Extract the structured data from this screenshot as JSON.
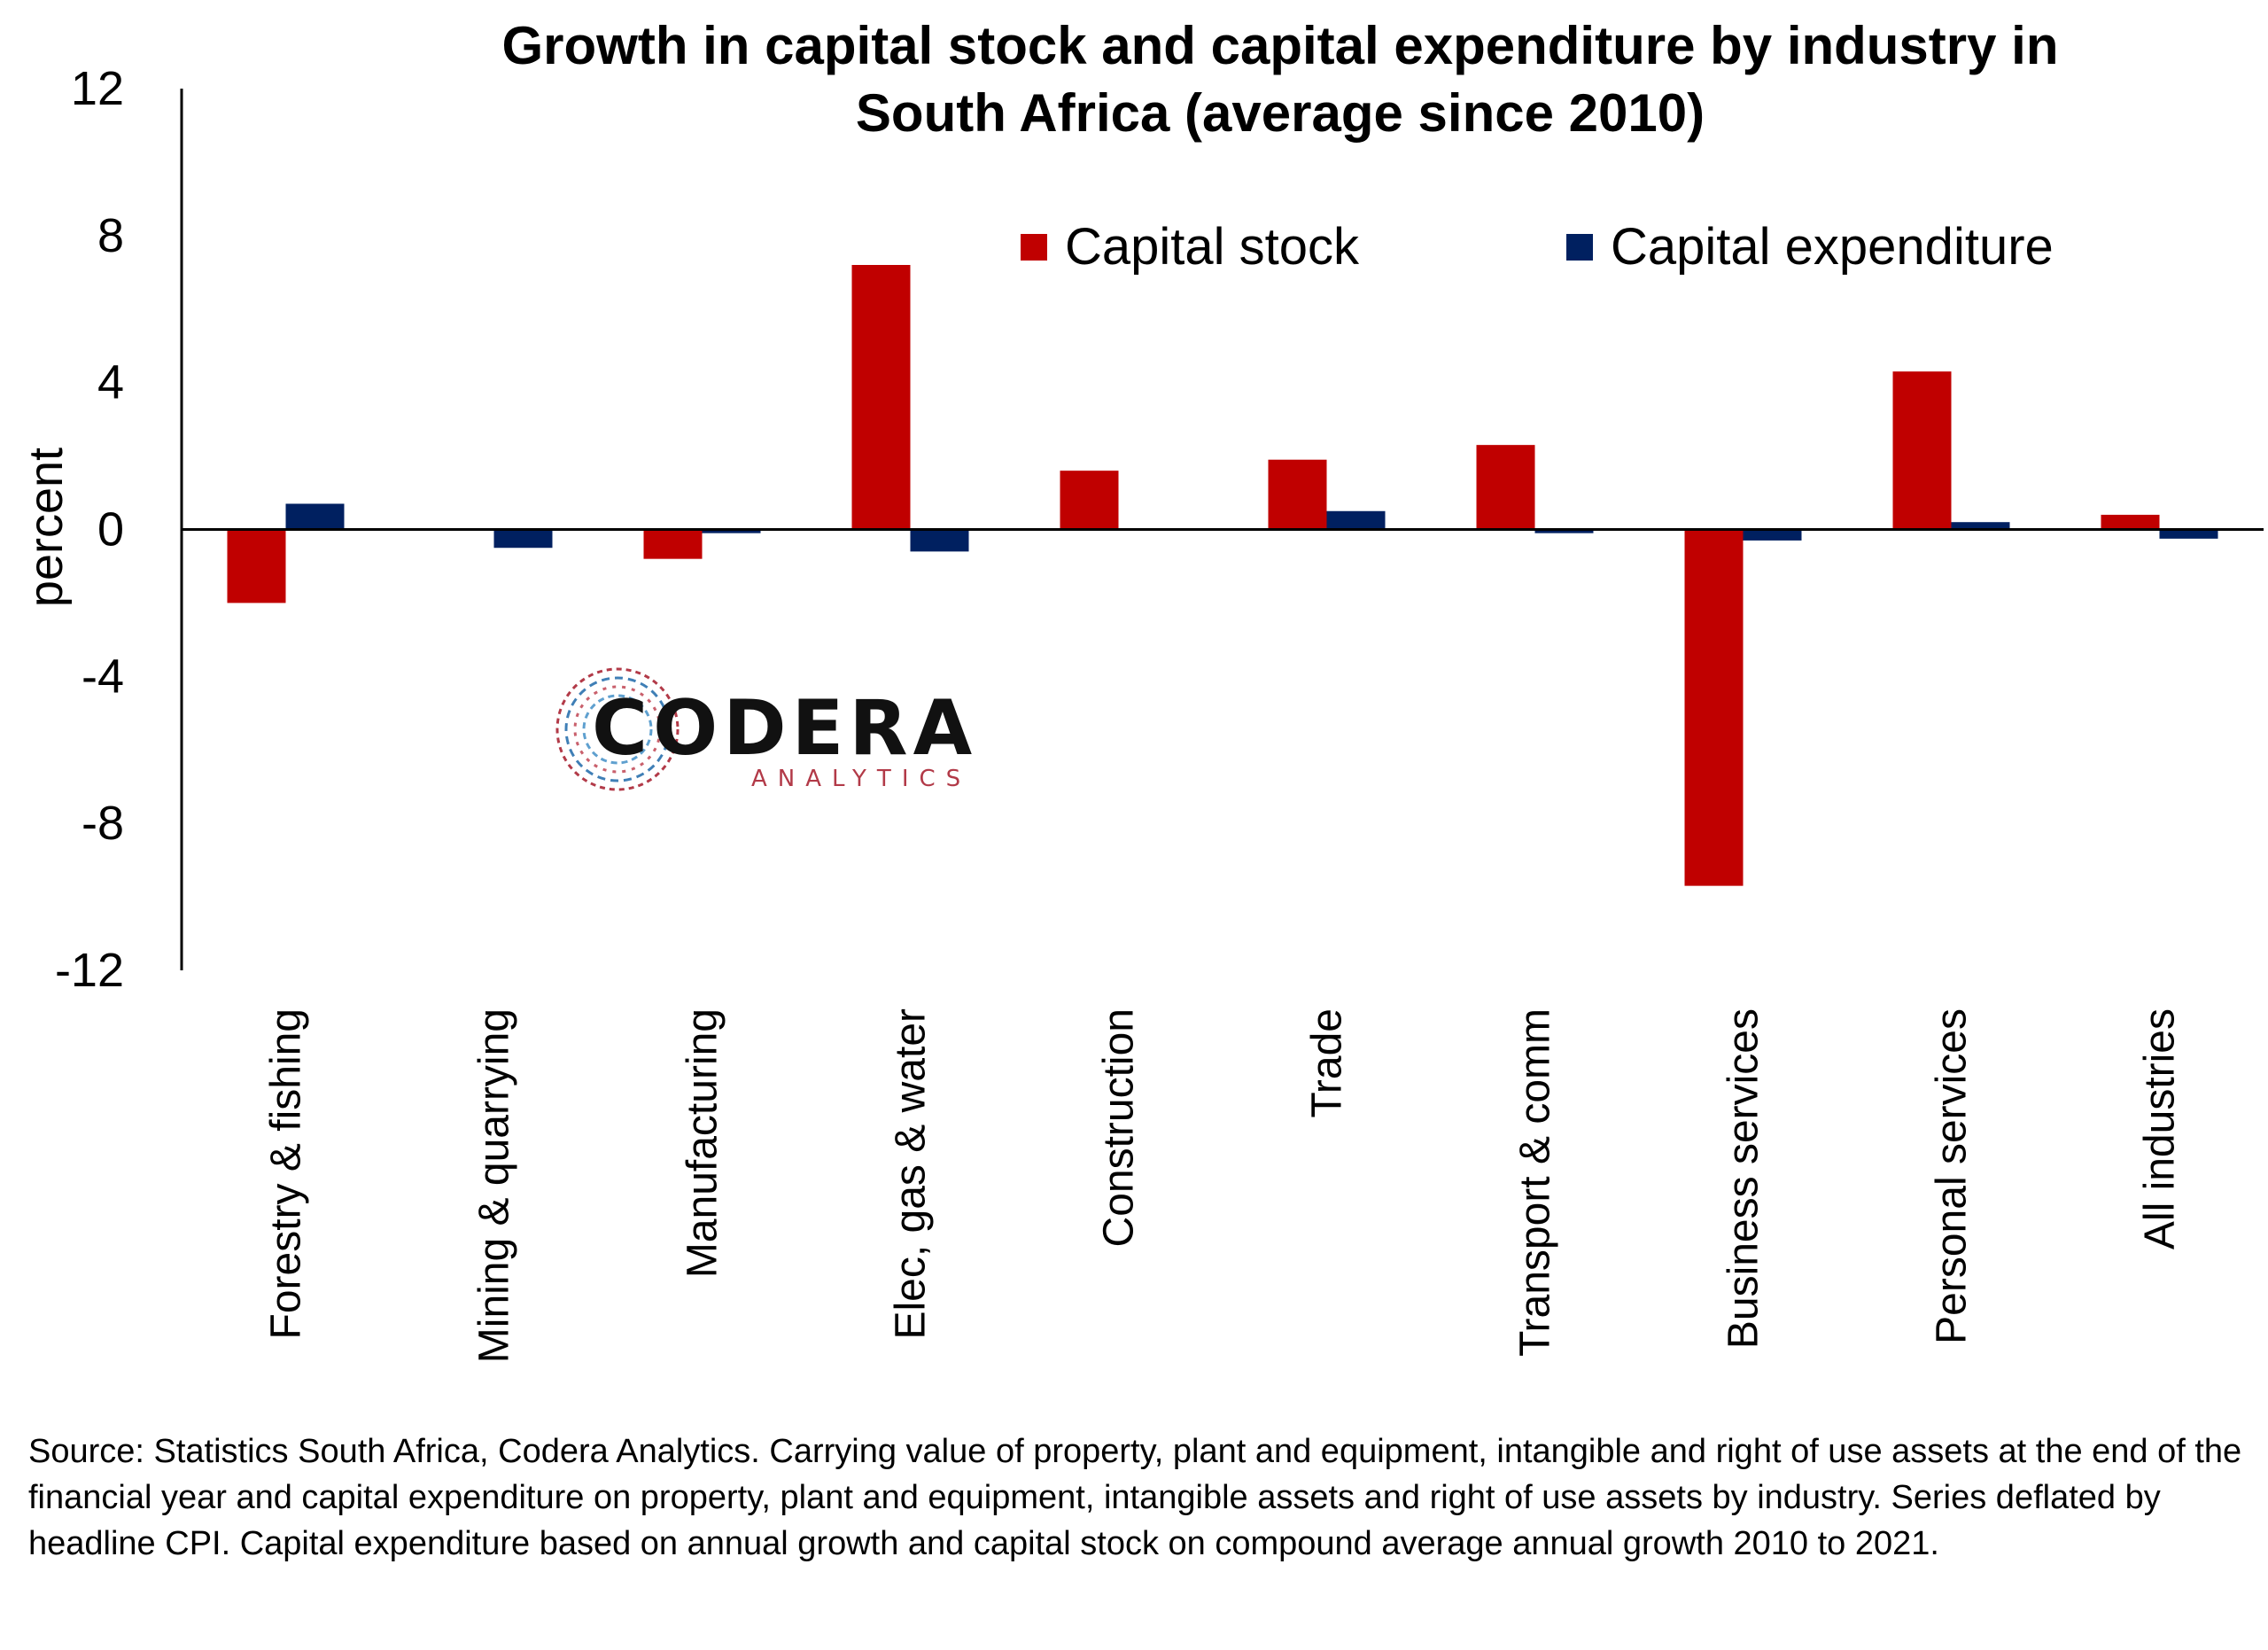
{
  "chart_data": {
    "type": "bar",
    "title": "Growth in capital stock and capital expenditure by industry in South Africa (average since 2010)",
    "title_lines": [
      "Growth in capital stock and capital expenditure by industry in",
      "South Africa (average since 2010)"
    ],
    "ylabel": "percent",
    "xlabel": "",
    "ylim": [
      -12,
      12
    ],
    "yticks": [
      "12",
      "8",
      "4",
      "0",
      "-4",
      "-8",
      "-12"
    ],
    "categories": [
      "Forestry & fishing",
      "Mining & quarrying",
      "Manufacturing",
      "Elec, gas & water",
      "Construction",
      "Trade",
      "Transport & comm",
      "Business services",
      "Personal services",
      "All industries"
    ],
    "series": [
      {
        "name": "Capital stock",
        "color": "#c00000",
        "values": [
          -2.0,
          0.0,
          -0.8,
          7.2,
          1.6,
          1.9,
          2.3,
          -9.7,
          4.3,
          0.4
        ]
      },
      {
        "name": "Capital expenditure",
        "color": "#002060",
        "values": [
          0.7,
          -0.5,
          -0.1,
          -0.6,
          0.0,
          0.5,
          -0.1,
          -0.3,
          0.2,
          -0.25
        ]
      }
    ],
    "legend_position": "top-right",
    "grid": false
  },
  "logo": {
    "word": "CODERA",
    "sub": "ANALYTICS",
    "icon": "codera-circle-icon"
  },
  "footnote": "Source: Statistics South Africa, Codera Analytics. Carrying value of property, plant and equipment, intangible and right of use assets at the end of the financial year and capital expenditure on property, plant and equipment, intangible assets and right of use assets by industry. Series deflated by headline CPI. Capital expenditure based on annual growth and capital stock on compound average annual growth 2010 to 2021."
}
